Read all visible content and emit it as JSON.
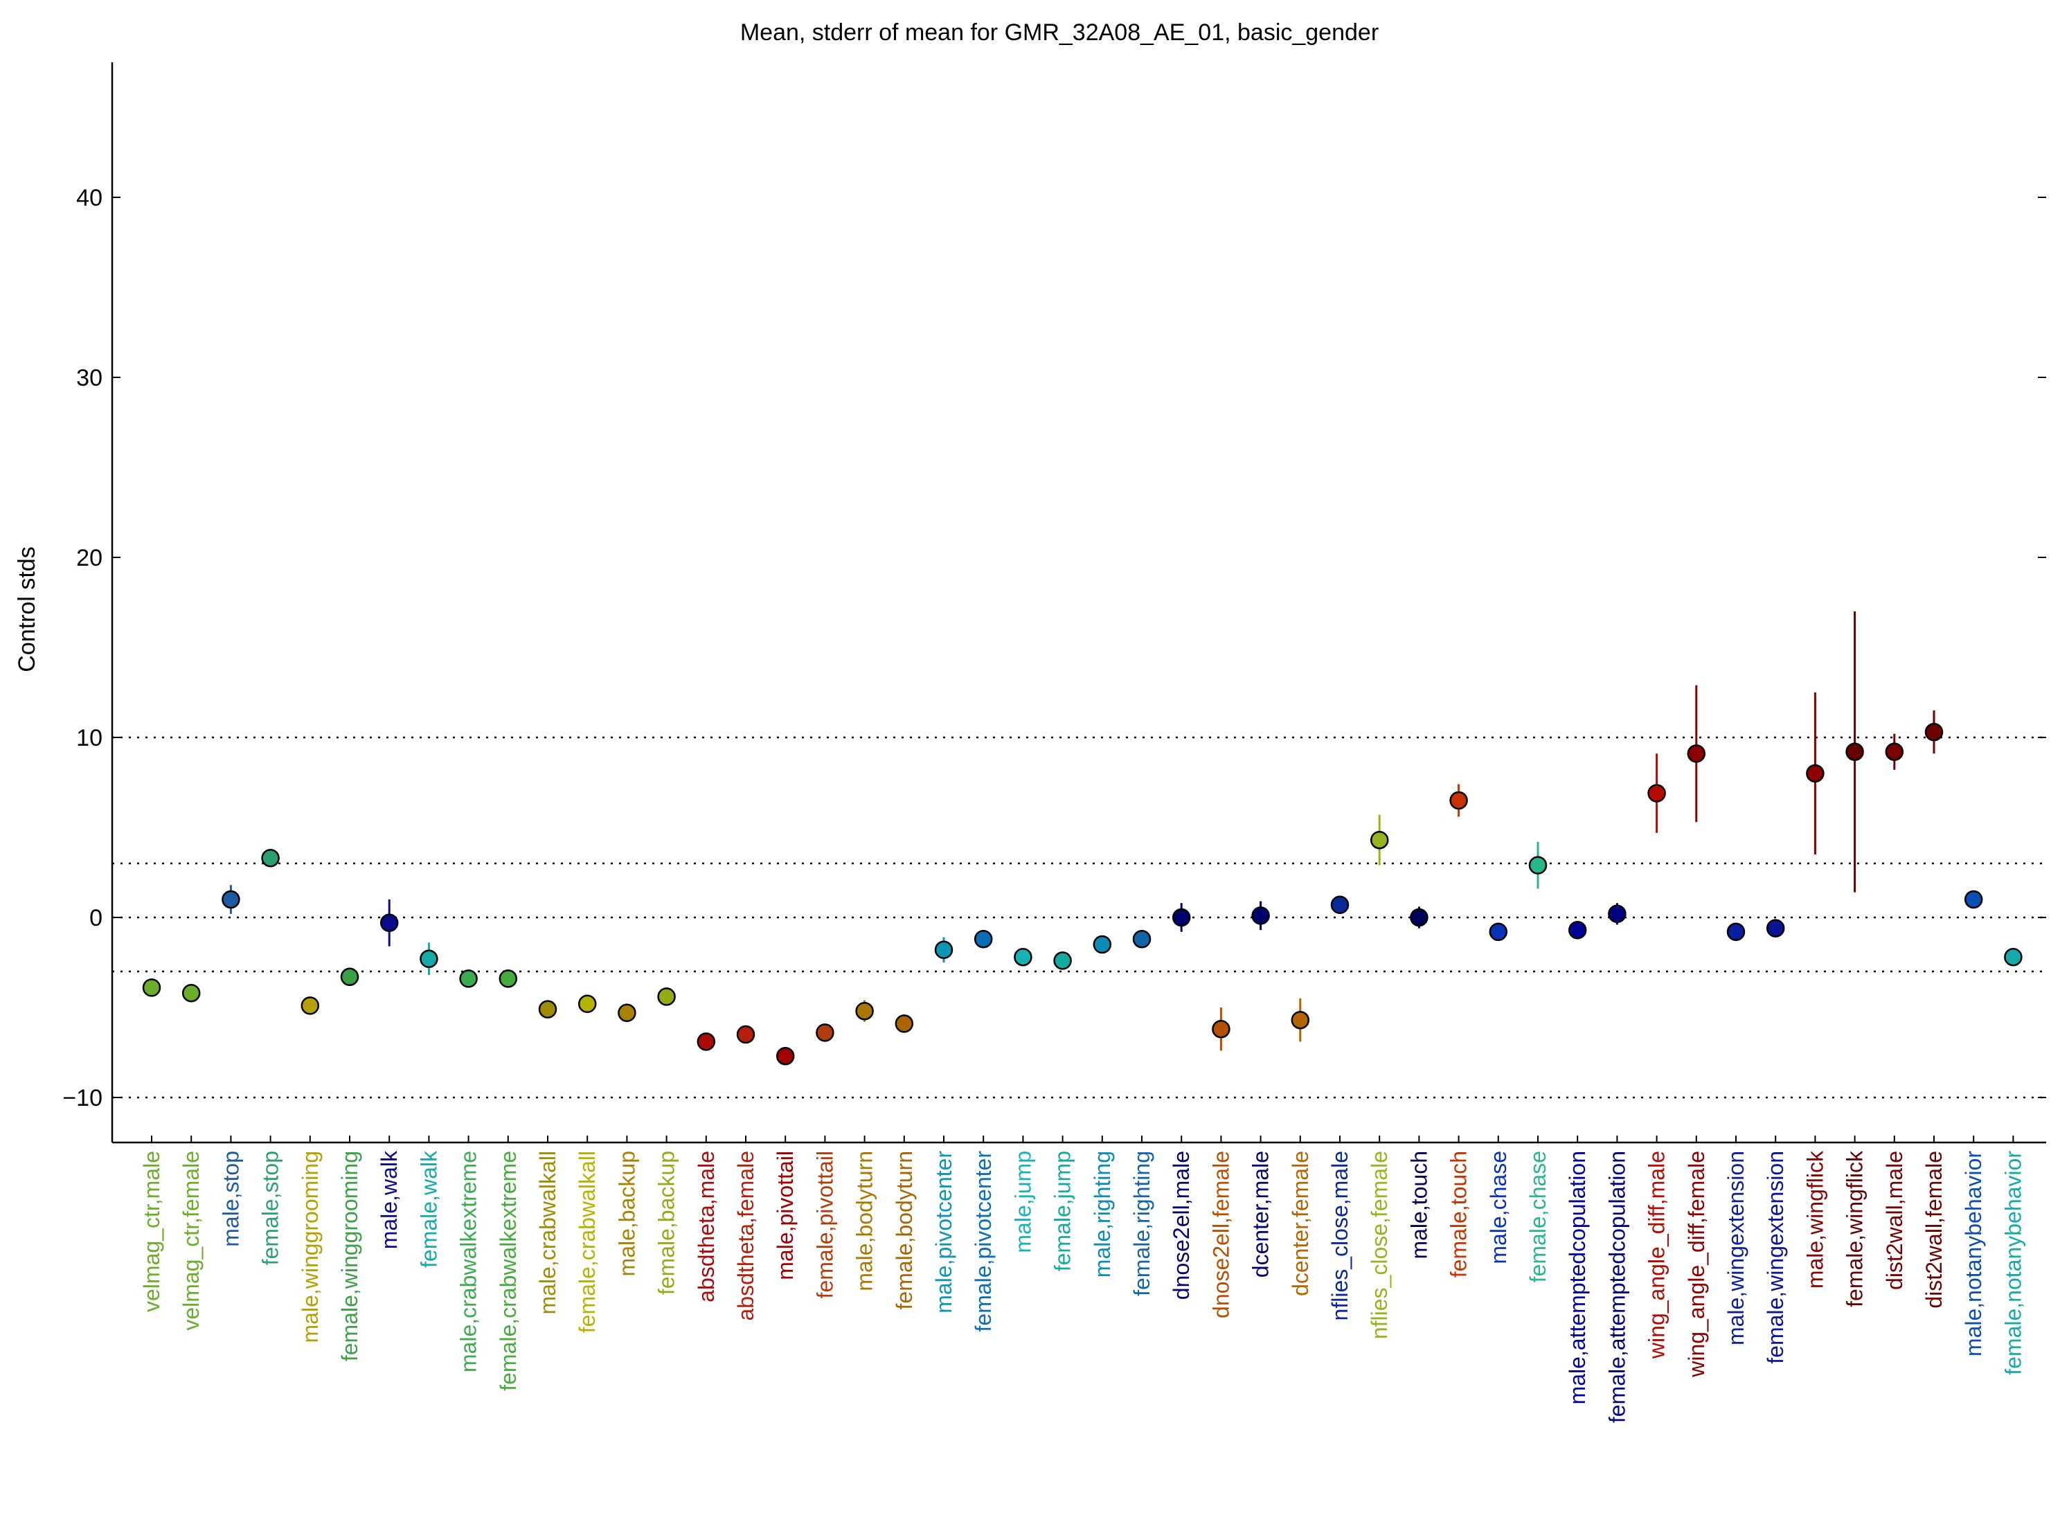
{
  "chart_data": {
    "type": "scatter",
    "title": "Mean, stderr of mean for GMR_32A08_AE_01, basic_gender",
    "ylabel": "Control stds",
    "xlabel": "",
    "ylim": [
      -12.5,
      47.5
    ],
    "yticks": [
      -10,
      0,
      10,
      20,
      30,
      40
    ],
    "reference_lines": [
      -10,
      -3,
      0,
      3,
      10
    ],
    "grid": false,
    "categories": [
      "velmag_ctr,male",
      "velmag_ctr,female",
      "male,stop",
      "female,stop",
      "male,winggrooming",
      "female,winggrooming",
      "male,walk",
      "female,walk",
      "male,crabwalkextreme",
      "female,crabwalkextreme",
      "male,crabwalkall",
      "female,crabwalkall",
      "male,backup",
      "female,backup",
      "absdtheta,male",
      "absdtheta,female",
      "male,pivottail",
      "female,pivottail",
      "male,bodyturn",
      "female,bodyturn",
      "male,pivotcenter",
      "female,pivotcenter",
      "male,jump",
      "female,jump",
      "male,righting",
      "female,righting",
      "dnose2ell,male",
      "dnose2ell,female",
      "dcenter,male",
      "dcenter,female",
      "nflies_close,male",
      "nflies_close,female",
      "male,touch",
      "female,touch",
      "male,chase",
      "female,chase",
      "male,attemptedcopulation",
      "female,attemptedcopulation",
      "wing_angle_diff,male",
      "wing_angle_diff,female",
      "male,wingextension",
      "female,wingextension",
      "male,wingflick",
      "female,wingflick",
      "dist2wall,male",
      "dist2wall,female",
      "male,notanybehavior",
      "female,notanybehavior"
    ],
    "series": [
      {
        "marker": "circle",
        "mean": [
          -3.9,
          -4.2,
          1.0,
          3.3,
          -4.9,
          -3.3,
          -0.3,
          -2.3,
          -3.4,
          -3.4,
          -5.1,
          -4.8,
          -5.3,
          -4.4,
          -6.9,
          -6.5,
          -7.7,
          -6.4,
          -5.2,
          -5.9,
          -1.8,
          -1.2,
          -2.2,
          -2.4,
          -1.5,
          -1.2,
          0.0,
          -6.2,
          0.1,
          -5.7,
          0.7,
          4.3,
          0.0,
          6.5,
          -0.8,
          2.9,
          -0.7,
          0.2,
          6.9,
          9.1,
          -0.8,
          -0.6,
          8.0,
          9.2,
          9.2,
          10.3,
          1.0,
          -2.2
        ],
        "stderr": [
          0.4,
          0.4,
          0.8,
          0.4,
          0.3,
          0.5,
          1.3,
          0.9,
          0.2,
          0.3,
          0.3,
          0.4,
          0.4,
          0.5,
          0.4,
          0.5,
          0.3,
          0.4,
          0.6,
          0.5,
          0.7,
          0.4,
          0.2,
          0.3,
          0.4,
          0.3,
          0.8,
          1.2,
          0.8,
          1.2,
          0.5,
          1.4,
          0.6,
          0.9,
          0.2,
          1.3,
          0.4,
          0.6,
          2.2,
          3.8,
          0.2,
          0.2,
          4.5,
          7.8,
          1.0,
          1.2,
          0.2,
          0.2
        ],
        "colors": [
          "#6aae2a",
          "#6aae2a",
          "#1e5aa0",
          "#2aa06e",
          "#b4a000",
          "#3ca046",
          "#0a0a8c",
          "#14aaaa",
          "#3caa50",
          "#46aa3c",
          "#a08c00",
          "#b4b400",
          "#aa8200",
          "#96aa14",
          "#aa0a0a",
          "#b41e0a",
          "#a00000",
          "#b43c0a",
          "#aa7800",
          "#aa6400",
          "#0a96b4",
          "#0a6eb4",
          "#14b4b4",
          "#14aaa0",
          "#0a8cb4",
          "#1464aa",
          "#00006e",
          "#b45000",
          "#00006e",
          "#b46400",
          "#0a2896",
          "#96b41e",
          "#00005a",
          "#c83200",
          "#0a32b4",
          "#28b48c",
          "#000096",
          "#000082",
          "#b40a00",
          "#8c0000",
          "#0a1ea0",
          "#0a1496",
          "#8c0000",
          "#640000",
          "#780000",
          "#6e0000",
          "#0a50b4",
          "#14aaaa"
        ]
      }
    ]
  }
}
